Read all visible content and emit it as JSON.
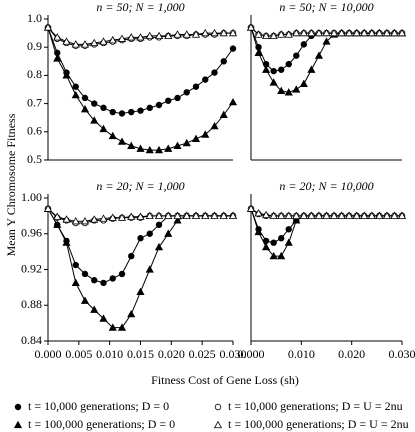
{
  "y_label": "Mean Y Chromosome Fitness",
  "x_label": "Fitness Cost of Gene Loss (sh)",
  "series_styles": [
    {
      "name": "t = 10,000 generations; D = 0",
      "marker": "circle",
      "fill": "#000000"
    },
    {
      "name": "t = 10,000 generations; D = U = 2nu",
      "marker": "circle",
      "fill": "#ffffff"
    },
    {
      "name": "t = 100,000 generations; D = 0",
      "marker": "triangle",
      "fill": "#000000"
    },
    {
      "name": "t = 100,000 generations; D = U = 2nu",
      "marker": "triangle",
      "fill": "#ffffff"
    }
  ],
  "chart_data": [
    {
      "type": "line",
      "title": "n = 50; N = 1,000",
      "x": [
        0,
        0.0015,
        0.003,
        0.0045,
        0.006,
        0.0075,
        0.009,
        0.0105,
        0.012,
        0.0135,
        0.015,
        0.0165,
        0.018,
        0.0195,
        0.021,
        0.0225,
        0.024,
        0.0255,
        0.027,
        0.0285,
        0.03
      ],
      "xlim": [
        0,
        0.03
      ],
      "ylim": [
        0.5,
        1.0
      ],
      "yticks": [
        0.5,
        0.6,
        0.7,
        0.8,
        0.9,
        {
          "value": 1.0,
          "label": "1.0"
        }
      ],
      "series": [
        {
          "values": [
            0.97,
            0.88,
            0.81,
            0.76,
            0.72,
            0.7,
            0.685,
            0.67,
            0.665,
            0.67,
            0.675,
            0.685,
            0.695,
            0.71,
            0.72,
            0.74,
            0.76,
            0.785,
            0.81,
            0.85,
            0.895
          ]
        },
        {
          "values": [
            0.97,
            0.93,
            0.915,
            0.905,
            0.905,
            0.91,
            0.915,
            0.92,
            0.925,
            0.93,
            0.93,
            0.935,
            0.935,
            0.94,
            0.94,
            0.94,
            0.945,
            0.945,
            0.945,
            0.95,
            0.95
          ]
        },
        {
          "values": [
            0.97,
            0.86,
            0.8,
            0.73,
            0.68,
            0.64,
            0.61,
            0.585,
            0.565,
            0.55,
            0.54,
            0.535,
            0.535,
            0.54,
            0.55,
            0.56,
            0.575,
            0.59,
            0.62,
            0.66,
            0.705
          ]
        },
        {
          "values": [
            0.97,
            0.935,
            0.92,
            0.91,
            0.91,
            0.915,
            0.92,
            0.925,
            0.93,
            0.935,
            0.935,
            0.94,
            0.94,
            0.94,
            0.945,
            0.945,
            0.945,
            0.95,
            0.95,
            0.95,
            0.95
          ]
        }
      ]
    },
    {
      "type": "line",
      "title": "n = 50; N = 10,000",
      "x": [
        0,
        0.0015,
        0.003,
        0.0045,
        0.006,
        0.0075,
        0.009,
        0.0105,
        0.012,
        0.0135,
        0.015,
        0.0165,
        0.018,
        0.0195,
        0.021,
        0.0225,
        0.024,
        0.0255,
        0.027,
        0.0285,
        0.03
      ],
      "xlim": [
        0,
        0.03
      ],
      "ylim": [
        0.5,
        1.0
      ],
      "series": [
        {
          "values": [
            0.97,
            0.9,
            0.84,
            0.815,
            0.82,
            0.84,
            0.87,
            0.91,
            0.94,
            0.95,
            0.95,
            0.95,
            0.95,
            0.95,
            0.95,
            0.95,
            0.95,
            0.95,
            0.95,
            0.95,
            0.95
          ]
        },
        {
          "values": [
            0.97,
            0.945,
            0.94,
            0.94,
            0.945,
            0.945,
            0.95,
            0.95,
            0.95,
            0.95,
            0.95,
            0.95,
            0.95,
            0.95,
            0.95,
            0.95,
            0.95,
            0.95,
            0.95,
            0.95,
            0.95
          ]
        },
        {
          "values": [
            0.97,
            0.88,
            0.82,
            0.775,
            0.745,
            0.74,
            0.75,
            0.77,
            0.82,
            0.87,
            0.92,
            0.945,
            0.95,
            0.95,
            0.95,
            0.95,
            0.95,
            0.95,
            0.95,
            0.95,
            0.95
          ]
        },
        {
          "values": [
            0.97,
            0.945,
            0.94,
            0.94,
            0.945,
            0.945,
            0.95,
            0.95,
            0.95,
            0.95,
            0.95,
            0.95,
            0.95,
            0.95,
            0.95,
            0.95,
            0.95,
            0.95,
            0.95,
            0.95,
            0.95
          ]
        }
      ]
    },
    {
      "type": "line",
      "title": "n = 20; N = 1,000",
      "x": [
        0,
        0.0015,
        0.003,
        0.0045,
        0.006,
        0.0075,
        0.009,
        0.0105,
        0.012,
        0.0135,
        0.015,
        0.0165,
        0.018,
        0.0195,
        0.021,
        0.0225,
        0.024,
        0.0255,
        0.027,
        0.0285,
        0.03
      ],
      "xlim": [
        0,
        0.03
      ],
      "ylim": [
        0.84,
        1.0
      ],
      "xticks": [
        {
          "value": 0,
          "label": "0.000"
        },
        {
          "value": 0.005,
          "label": "0.005"
        },
        {
          "value": 0.01,
          "label": "0.010"
        },
        {
          "value": 0.015,
          "label": "0.015"
        },
        {
          "value": 0.02,
          "label": "0.020"
        },
        {
          "value": 0.025,
          "label": "0.025"
        },
        {
          "value": 0.03,
          "label": "0.030"
        }
      ],
      "yticks": [
        0.84,
        0.88,
        0.92,
        0.96,
        {
          "value": 1.0,
          "label": "1.00"
        }
      ],
      "series": [
        {
          "values": [
            0.988,
            0.97,
            0.952,
            0.925,
            0.915,
            0.908,
            0.905,
            0.91,
            0.915,
            0.935,
            0.955,
            0.96,
            0.97,
            0.98,
            0.98,
            0.98,
            0.98,
            0.98,
            0.98,
            0.98,
            0.98
          ]
        },
        {
          "values": [
            0.988,
            0.978,
            0.975,
            0.972,
            0.972,
            0.975,
            0.975,
            0.977,
            0.978,
            0.978,
            0.978,
            0.98,
            0.98,
            0.98,
            0.98,
            0.98,
            0.98,
            0.98,
            0.98,
            0.98,
            0.98
          ]
        },
        {
          "values": [
            0.988,
            0.97,
            0.95,
            0.905,
            0.885,
            0.875,
            0.865,
            0.855,
            0.855,
            0.87,
            0.895,
            0.92,
            0.945,
            0.96,
            0.975,
            0.98,
            0.98,
            0.98,
            0.98,
            0.98,
            0.98
          ]
        },
        {
          "values": [
            0.988,
            0.979,
            0.976,
            0.974,
            0.974,
            0.976,
            0.977,
            0.978,
            0.978,
            0.979,
            0.979,
            0.98,
            0.98,
            0.98,
            0.98,
            0.98,
            0.98,
            0.98,
            0.98,
            0.98,
            0.98
          ]
        }
      ]
    },
    {
      "type": "line",
      "title": "n = 20; N = 10,000",
      "x": [
        0,
        0.0015,
        0.003,
        0.0045,
        0.006,
        0.0075,
        0.009,
        0.0105,
        0.012,
        0.0135,
        0.015,
        0.0165,
        0.018,
        0.0195,
        0.021,
        0.0225,
        0.024,
        0.0255,
        0.027,
        0.0285,
        0.03
      ],
      "xlim": [
        0,
        0.03
      ],
      "ylim": [
        0.84,
        1.0
      ],
      "xticks": [
        {
          "value": 0,
          "label": "0.000"
        },
        {
          "value": 0.01,
          "label": "0.010"
        },
        {
          "value": 0.02,
          "label": "0.020"
        },
        {
          "value": 0.03,
          "label": "0.030"
        }
      ],
      "series": [
        {
          "values": [
            0.988,
            0.965,
            0.952,
            0.95,
            0.955,
            0.965,
            0.975,
            0.98,
            0.98,
            0.98,
            0.98,
            0.98,
            0.98,
            0.98,
            0.98,
            0.98,
            0.98,
            0.98,
            0.98,
            0.98,
            0.98
          ]
        },
        {
          "values": [
            0.988,
            0.982,
            0.98,
            0.98,
            0.98,
            0.98,
            0.98,
            0.98,
            0.98,
            0.98,
            0.98,
            0.98,
            0.98,
            0.98,
            0.98,
            0.98,
            0.98,
            0.98,
            0.98,
            0.98,
            0.98
          ]
        },
        {
          "values": [
            0.988,
            0.962,
            0.945,
            0.935,
            0.935,
            0.95,
            0.975,
            0.98,
            0.98,
            0.98,
            0.98,
            0.98,
            0.98,
            0.98,
            0.98,
            0.98,
            0.98,
            0.98,
            0.98,
            0.98,
            0.98
          ]
        },
        {
          "values": [
            0.988,
            0.983,
            0.981,
            0.98,
            0.98,
            0.98,
            0.98,
            0.98,
            0.98,
            0.98,
            0.98,
            0.98,
            0.98,
            0.98,
            0.98,
            0.98,
            0.98,
            0.98,
            0.98,
            0.98,
            0.98
          ]
        }
      ]
    }
  ]
}
